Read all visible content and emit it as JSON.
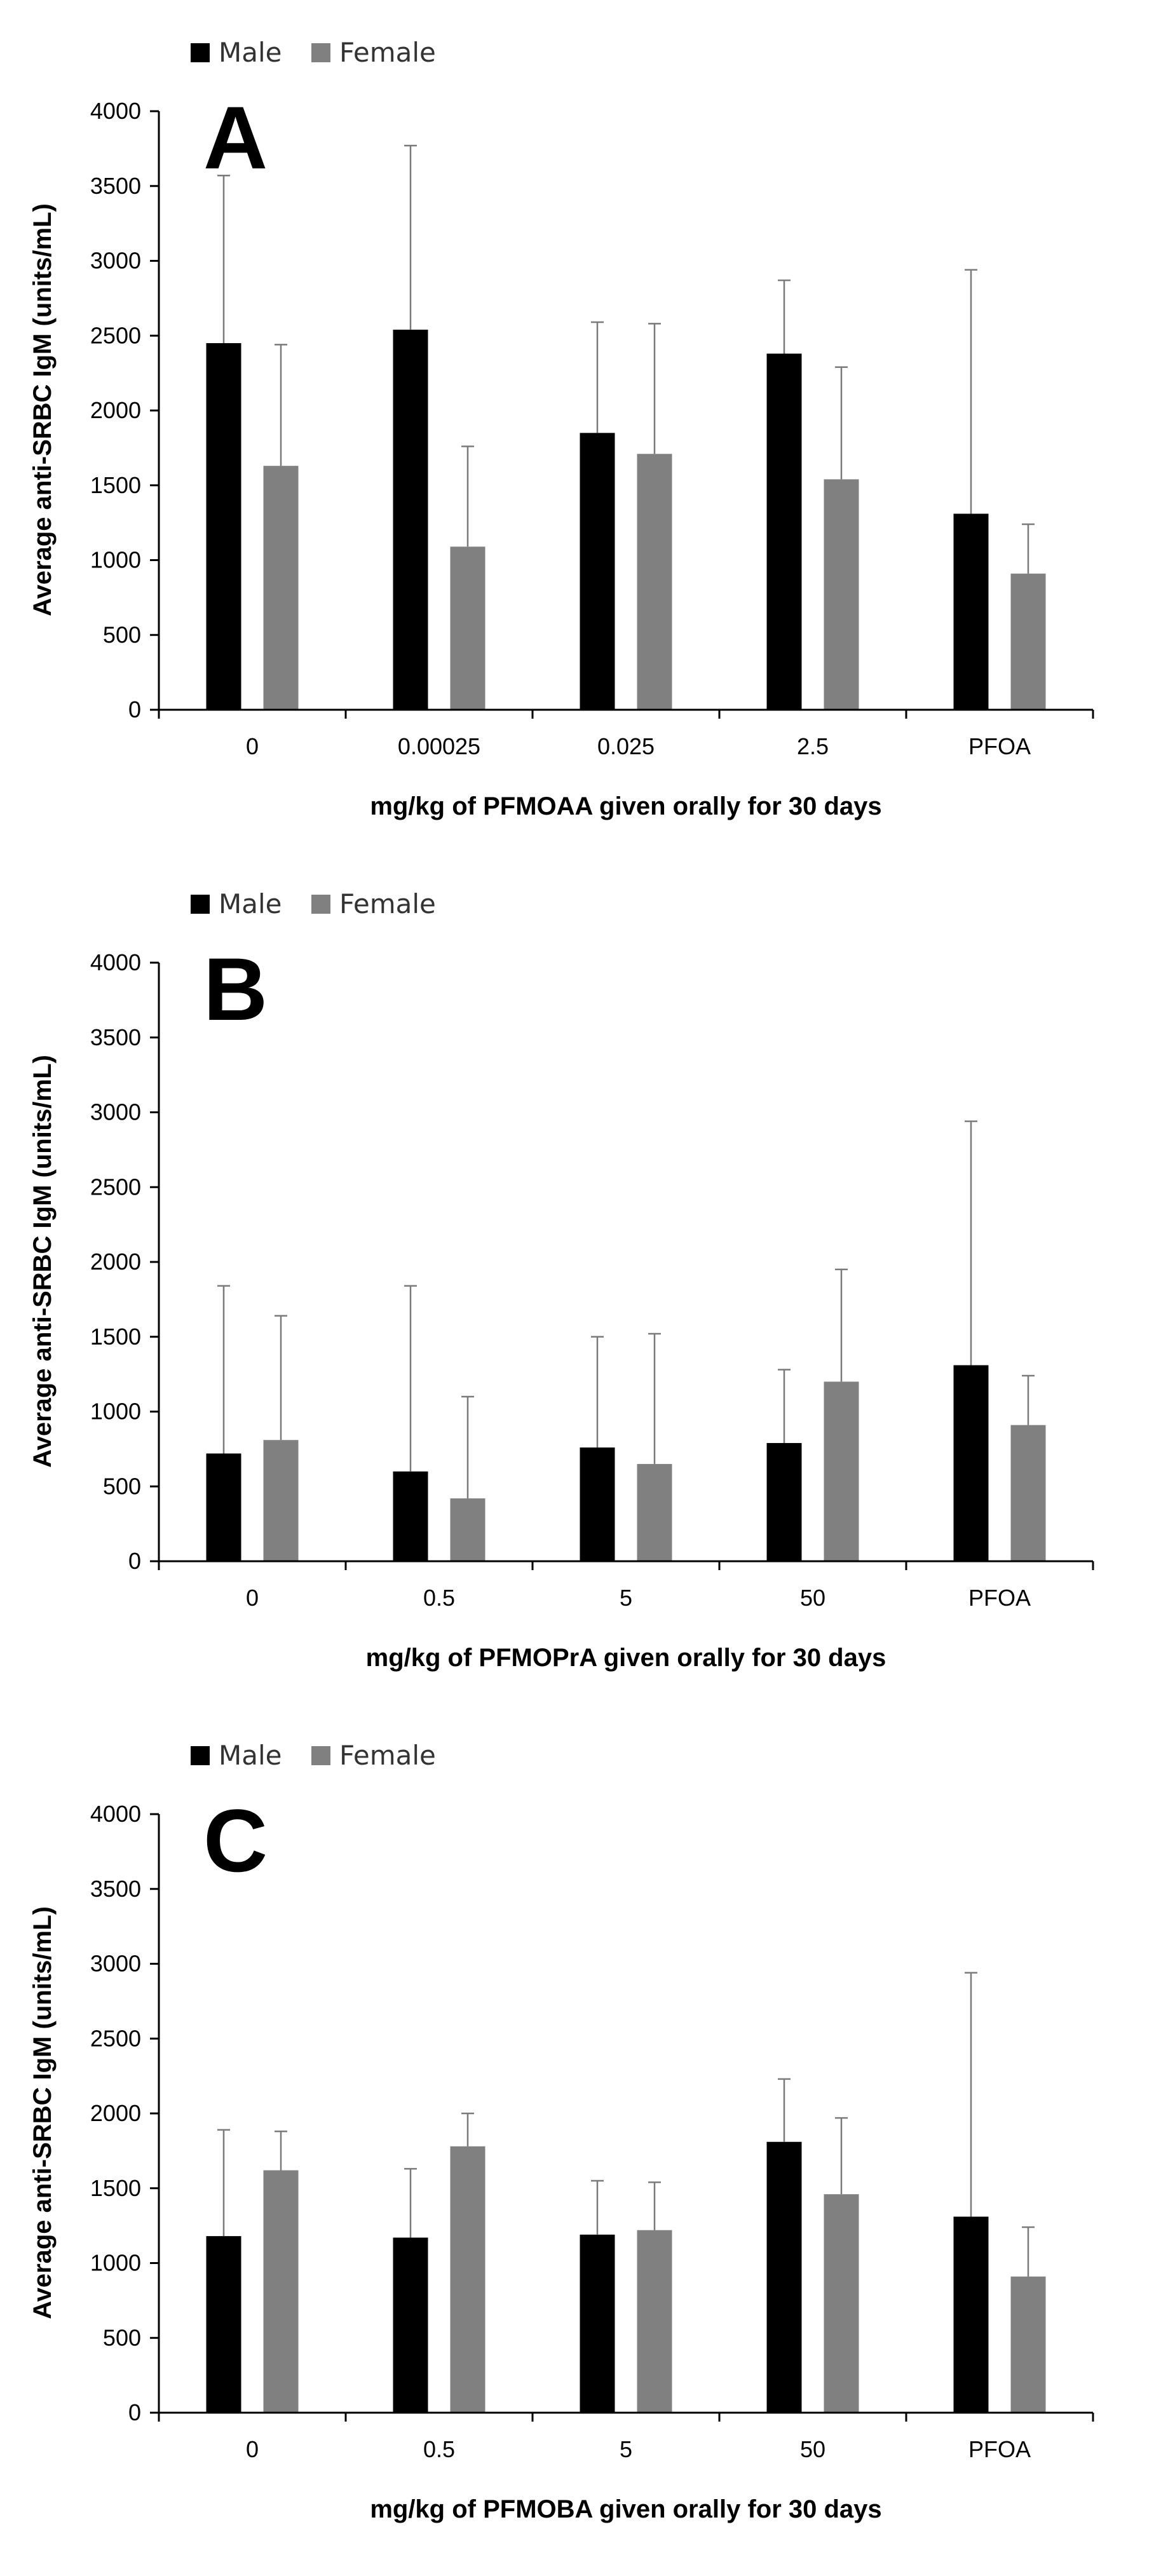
{
  "colors": {
    "male": "#000000",
    "female": "#808080",
    "errorbar": "#7a7a7a"
  },
  "chart_data": [
    {
      "type": "bar",
      "panel_label": "A",
      "categories": [
        "0",
        "0.00025",
        "0.025",
        "2.5",
        "PFOA"
      ],
      "series": [
        {
          "name": "Male",
          "values": [
            2450,
            2540,
            1850,
            2380,
            1310
          ],
          "error_upper": [
            3570,
            3770,
            2590,
            2870,
            2940
          ]
        },
        {
          "name": "Female",
          "values": [
            1630,
            1090,
            1710,
            1540,
            910
          ],
          "error_upper": [
            2440,
            1760,
            2580,
            2290,
            1240
          ]
        }
      ],
      "xlabel": "mg/kg of PFMOAA given orally for 30 days",
      "ylabel": "Average anti-SRBC IgM (units/mL)",
      "ylim": [
        0,
        4000
      ],
      "yticks": [
        "0",
        "500",
        "1000",
        "1500",
        "2000",
        "2500",
        "3000",
        "3500",
        "4000"
      ],
      "legend": [
        "Male",
        "Female"
      ],
      "legend_position": "top-left"
    },
    {
      "type": "bar",
      "panel_label": "B",
      "categories": [
        "0",
        "0.5",
        "5",
        "50",
        "PFOA"
      ],
      "series": [
        {
          "name": "Male",
          "values": [
            720,
            600,
            760,
            790,
            1310
          ],
          "error_upper": [
            1840,
            1840,
            1500,
            1280,
            2940
          ]
        },
        {
          "name": "Female",
          "values": [
            810,
            420,
            650,
            1200,
            910
          ],
          "error_upper": [
            1640,
            1100,
            1520,
            1950,
            1240
          ]
        }
      ],
      "xlabel": "mg/kg of PFMOPrA given orally for 30 days",
      "ylabel": "Average anti-SRBC IgM (units/mL)",
      "ylim": [
        0,
        4000
      ],
      "yticks": [
        "0",
        "500",
        "1000",
        "1500",
        "2000",
        "2500",
        "3000",
        "3500",
        "4000"
      ],
      "legend": [
        "Male",
        "Female"
      ],
      "legend_position": "top-left"
    },
    {
      "type": "bar",
      "panel_label": "C",
      "categories": [
        "0",
        "0.5",
        "5",
        "50",
        "PFOA"
      ],
      "series": [
        {
          "name": "Male",
          "values": [
            1180,
            1170,
            1190,
            1810,
            1310
          ],
          "error_upper": [
            1890,
            1630,
            1550,
            2230,
            2940
          ]
        },
        {
          "name": "Female",
          "values": [
            1620,
            1780,
            1220,
            1460,
            910
          ],
          "error_upper": [
            1880,
            2000,
            1540,
            1970,
            1240
          ]
        }
      ],
      "xlabel": "mg/kg of PFMOBA given orally for 30 days",
      "ylabel": "Average anti-SRBC IgM (units/mL)",
      "ylim": [
        0,
        4000
      ],
      "yticks": [
        "0",
        "500",
        "1000",
        "1500",
        "2000",
        "2500",
        "3000",
        "3500",
        "4000"
      ],
      "legend": [
        "Male",
        "Female"
      ],
      "legend_position": "top-left"
    }
  ]
}
